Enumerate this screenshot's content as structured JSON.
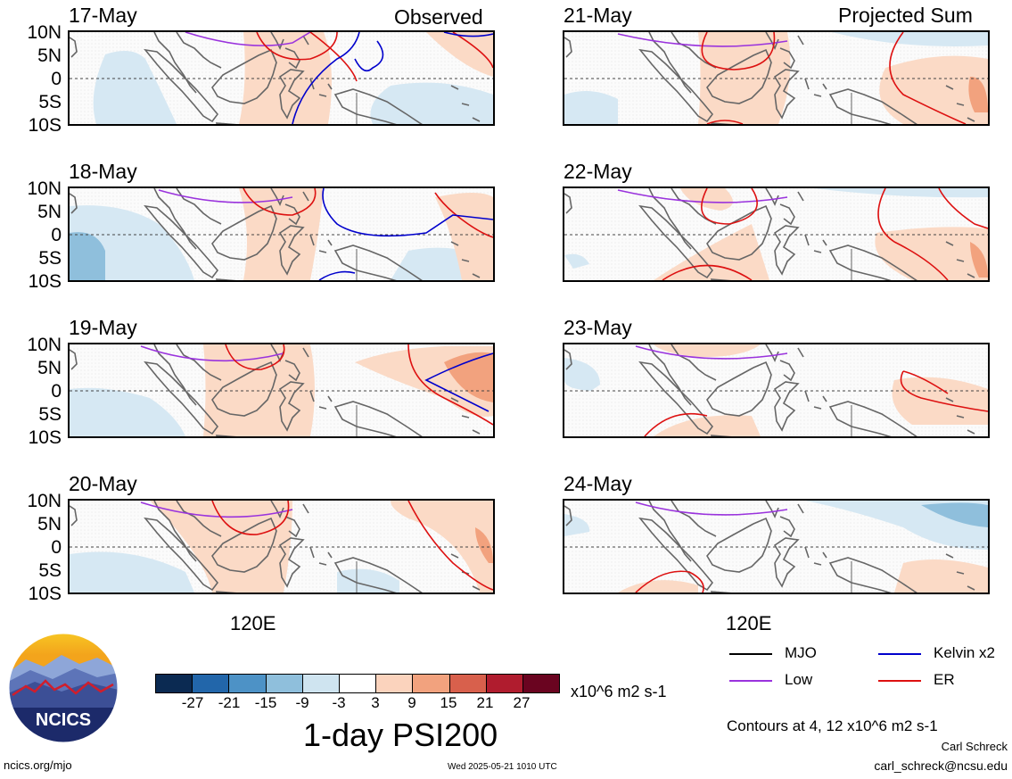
{
  "header": {
    "observed_label": "Observed",
    "projected_label": "Projected Sum"
  },
  "observed_panels": [
    {
      "date": "17-May"
    },
    {
      "date": "18-May"
    },
    {
      "date": "19-May"
    },
    {
      "date": "20-May"
    }
  ],
  "projected_panels": [
    {
      "date": "21-May"
    },
    {
      "date": "22-May"
    },
    {
      "date": "23-May"
    },
    {
      "date": "24-May"
    }
  ],
  "axes": {
    "lat_labels": [
      "10N",
      "5N",
      "0",
      "5S",
      "10S"
    ],
    "lon_label": "120E"
  },
  "colorbar": {
    "ticks": [
      "-27",
      "-21",
      "-15",
      "-9",
      "-3",
      "3",
      "9",
      "15",
      "21",
      "27"
    ],
    "colors": [
      "#0b2a52",
      "#2266aa",
      "#4d92c6",
      "#8fbfdc",
      "#cfe4f0",
      "#ffffff",
      "#fbd3bd",
      "#f2a27e",
      "#d8604c",
      "#b01c2e",
      "#6a0420"
    ],
    "units": "x10^6 m2 s-1",
    "title": "1-day PSI200"
  },
  "legend": {
    "items": [
      {
        "label": "MJO",
        "color": "#000000"
      },
      {
        "label": "Kelvin x2",
        "color": "#0000cc"
      },
      {
        "label": "Low",
        "color": "#9a33dd"
      },
      {
        "label": "ER",
        "color": "#dd1111"
      }
    ],
    "contours_note": "Contours at 4, 12 x10^6 m2 s-1"
  },
  "credits": {
    "author": "Carl Schreck",
    "email": "carl_schreck@ncsu.edu",
    "url": "ncics.org/mjo",
    "timestamp": "Wed 2025-05-21 1010 UTC",
    "logo_text": "NCICS"
  }
}
